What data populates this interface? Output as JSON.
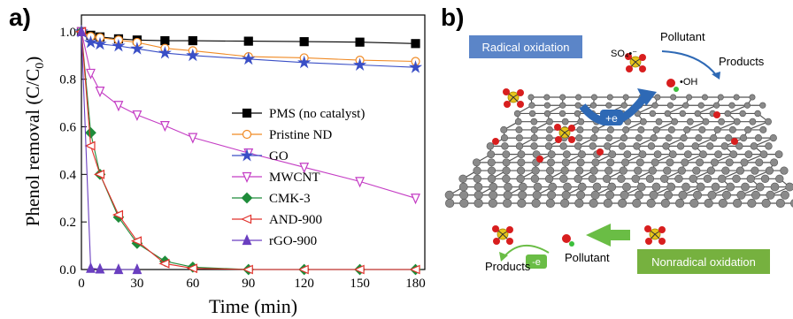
{
  "panel_a": {
    "letter": "a)",
    "chart_data": {
      "type": "line",
      "xlabel": "Time (min)",
      "ylabel": "Phenol removal (C/C",
      "ylabel_sub": "0",
      "ylabel_close": ")",
      "xlim": [
        0,
        185
      ],
      "ylim": [
        0,
        1.07
      ],
      "x_ticks": [
        0,
        30,
        60,
        90,
        120,
        150,
        180
      ],
      "y_ticks": [
        "0.0",
        "0.2",
        "0.4",
        "0.6",
        "0.8",
        "1.0"
      ],
      "legend_position": "right",
      "series": [
        {
          "name": "PMS (no catalyst)",
          "color": "#000000",
          "marker": "square",
          "filled": true,
          "x": [
            0,
            5,
            10,
            20,
            30,
            45,
            60,
            90,
            120,
            150,
            180
          ],
          "y": [
            1.0,
            0.985,
            0.978,
            0.97,
            0.965,
            0.962,
            0.962,
            0.96,
            0.958,
            0.956,
            0.95
          ]
        },
        {
          "name": "Pristine ND",
          "color": "#f08a24",
          "marker": "circle",
          "filled": false,
          "x": [
            0,
            5,
            10,
            20,
            30,
            45,
            60,
            90,
            120,
            150,
            180
          ],
          "y": [
            1.0,
            0.98,
            0.975,
            0.965,
            0.955,
            0.93,
            0.92,
            0.895,
            0.89,
            0.88,
            0.875
          ]
        },
        {
          "name": "GO",
          "color": "#3a4fc6",
          "marker": "star",
          "filled": true,
          "x": [
            0,
            5,
            10,
            20,
            30,
            45,
            60,
            90,
            120,
            150,
            180
          ],
          "y": [
            1.0,
            0.955,
            0.948,
            0.94,
            0.928,
            0.91,
            0.9,
            0.885,
            0.87,
            0.86,
            0.85
          ]
        },
        {
          "name": "MWCNT",
          "color": "#c43cc4",
          "marker": "triangle-down",
          "filled": false,
          "x": [
            0,
            5,
            10,
            20,
            30,
            45,
            60,
            90,
            120,
            150,
            180
          ],
          "y": [
            1.0,
            0.825,
            0.75,
            0.69,
            0.65,
            0.605,
            0.555,
            0.49,
            0.43,
            0.37,
            0.3
          ]
        },
        {
          "name": "CMK-3",
          "color": "#1f8c3a",
          "marker": "diamond",
          "filled": true,
          "x": [
            0,
            5,
            10,
            20,
            30,
            45,
            60,
            90,
            120,
            150,
            180
          ],
          "y": [
            1.0,
            0.575,
            0.4,
            0.22,
            0.11,
            0.035,
            0.01,
            0.0,
            0.0,
            0.0,
            0.0
          ]
        },
        {
          "name": "AND-900",
          "color": "#e0302a",
          "marker": "triangle-left",
          "filled": false,
          "x": [
            0,
            5,
            10,
            20,
            30,
            45,
            60,
            90,
            120,
            150,
            180
          ],
          "y": [
            1.0,
            0.52,
            0.4,
            0.23,
            0.12,
            0.025,
            0.005,
            0.0,
            0.0,
            0.0,
            0.0
          ]
        },
        {
          "name": "rGO-900",
          "color": "#6a3fc0",
          "marker": "triangle-up",
          "filled": true,
          "x": [
            0,
            5,
            10,
            20,
            30
          ],
          "y": [
            1.0,
            0.005,
            0.002,
            0.0,
            0.0
          ]
        }
      ]
    }
  },
  "panel_b": {
    "letter": "b)",
    "radical_label": "Radical oxidation",
    "nonradical_label": "Nonradical oxidation",
    "so4_label": "SO₄•⁻",
    "oh_label": "•OH",
    "pollutant_top": "Pollutant",
    "products_top": "Products",
    "plus_e": "+e",
    "minus_e": "-e",
    "pollutant_bottom": "Pollutant",
    "products_bottom": "Products",
    "colors": {
      "radical_box": "#5b85c8",
      "nonradical_box": "#76b13f",
      "carbon": "#8a8a8a",
      "oxygen": "#d81e1e",
      "sulfur": "#e6c41a",
      "arrow_blue": "#2e69b5",
      "arrow_green": "#6abd45"
    }
  }
}
